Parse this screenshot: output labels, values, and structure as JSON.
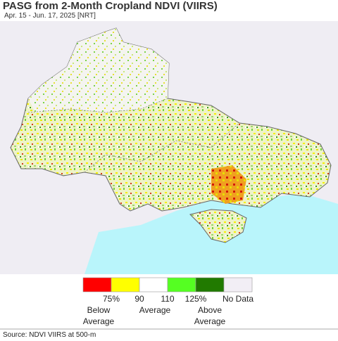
{
  "header": {
    "title": "PASG from 2-Month Cropland NDVI (VIIRS)",
    "subtitle": "Apr. 15 - Jun. 17, 2025 [NRT]"
  },
  "legend": {
    "colors": [
      "#ff0000",
      "#ffff00",
      "#ffffff",
      "#55ff22",
      "#217a00",
      "#f2eef5"
    ],
    "ticks": [
      "75%",
      "90",
      "110",
      "125%"
    ],
    "no_data": "No Data",
    "captions": [
      "Below Average",
      "Average",
      "Above Average"
    ]
  },
  "footer": {
    "source": "Source: NDVI VIIRS at 500-m"
  }
}
